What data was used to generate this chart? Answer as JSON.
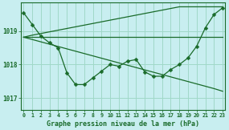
{
  "title": "Graphe pression niveau de la mer (hPa)",
  "bg_color": "#c8eef0",
  "grid_color": "#a0d8c8",
  "line_color": "#1a6b2a",
  "x_labels": [
    "0",
    "1",
    "2",
    "3",
    "4",
    "5",
    "6",
    "7",
    "8",
    "9",
    "10",
    "11",
    "12",
    "13",
    "14",
    "15",
    "16",
    "17",
    "18",
    "19",
    "20",
    "21",
    "22",
    "23"
  ],
  "xlim": [
    -0.3,
    23.3
  ],
  "ylim": [
    1016.65,
    1019.85
  ],
  "yticks": [
    1017,
    1018,
    1019
  ],
  "series_wavy": [
    1019.55,
    1019.2,
    1018.85,
    1018.65,
    1018.5,
    1017.75,
    1017.4,
    1017.4,
    1017.6,
    1017.8,
    1018.0,
    1017.95,
    1018.1,
    1018.15,
    1017.78,
    1017.65,
    1017.65,
    1017.85,
    1018.0,
    1018.2,
    1018.55,
    1019.1,
    1019.5,
    1019.7
  ],
  "series_flat": [
    1018.82,
    1018.82,
    1018.82,
    1018.82,
    1018.82,
    1018.82,
    1018.82,
    1018.82,
    1018.82,
    1018.82,
    1018.82,
    1018.82,
    1018.82,
    1018.82,
    1018.82,
    1018.82,
    1018.82,
    1018.82,
    1018.82,
    1018.82,
    1018.82,
    1018.82,
    1018.82,
    1018.82
  ],
  "series_diag_up": [
    1018.82,
    1018.88,
    1018.93,
    1018.98,
    1019.03,
    1019.08,
    1019.13,
    1019.18,
    1019.23,
    1019.28,
    1019.33,
    1019.38,
    1019.43,
    1019.48,
    1019.53,
    1019.58,
    1019.63,
    1019.68,
    1019.73,
    1019.73,
    1019.73,
    1019.73,
    1019.73,
    1019.73
  ],
  "series_diag_down": [
    1018.82,
    1018.75,
    1018.68,
    1018.61,
    1018.54,
    1018.47,
    1018.4,
    1018.33,
    1018.26,
    1018.19,
    1018.12,
    1018.05,
    1017.98,
    1017.91,
    1017.84,
    1017.77,
    1017.7,
    1017.63,
    1017.56,
    1017.49,
    1017.42,
    1017.35,
    1017.28,
    1017.2
  ]
}
